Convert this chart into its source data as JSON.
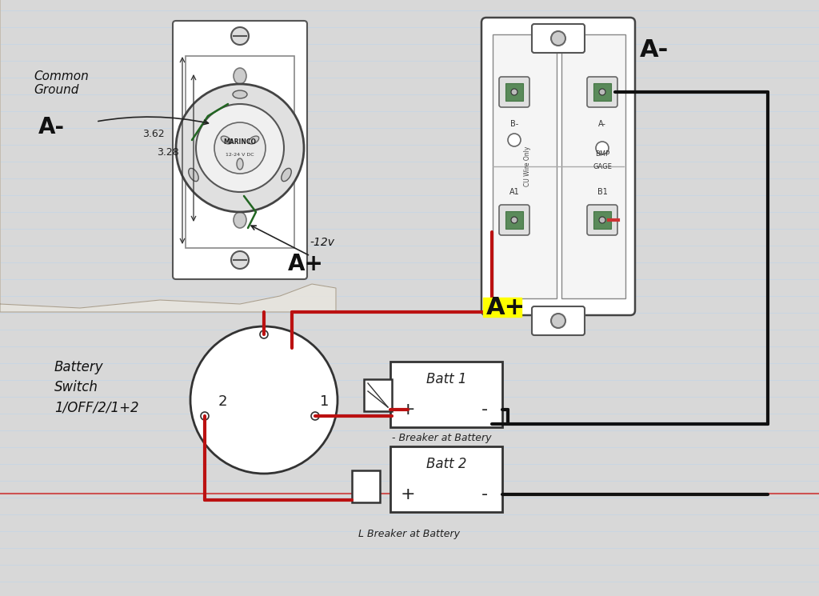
{
  "bg_color": "#d8d8d8",
  "paper_color": "#f5f4f0",
  "crumple_color": "#e8e5de",
  "line_color_blue": "#c5d5e5",
  "line_color_red_margin": "#cc4444",
  "wire_red": "#bb1111",
  "wire_black": "#111111",
  "wire_green": "#226622",
  "wire_red_small": "#cc3333",
  "text_color": "#111111",
  "marinco_label": "MARINCO",
  "marinco_sub": "12-24 V DC",
  "common_ground_label": "Common\nGround",
  "a_minus_label": "A-",
  "a_plus_label": "A+",
  "dim1": "3.62",
  "dim2": "3.28",
  "v12_label": "-12v",
  "battery_switch_label": "Battery\nSwitch\n1/OFF/2/1+2",
  "batt1_label": "Batt 1",
  "batt2_label": "Batt 2",
  "breaker1_label": "- Breaker at Battery",
  "breaker2_label": "L Breaker at Battery",
  "cu_wire_label": "CU Wire Only",
  "b_minus_label": "B-",
  "a_minus2_label": "A-",
  "bmp_label": "BMP",
  "gage_label": "GAGE",
  "a1_label": "A1",
  "b1_label": "B1",
  "switch_pos1": "1",
  "switch_pos2": "2"
}
